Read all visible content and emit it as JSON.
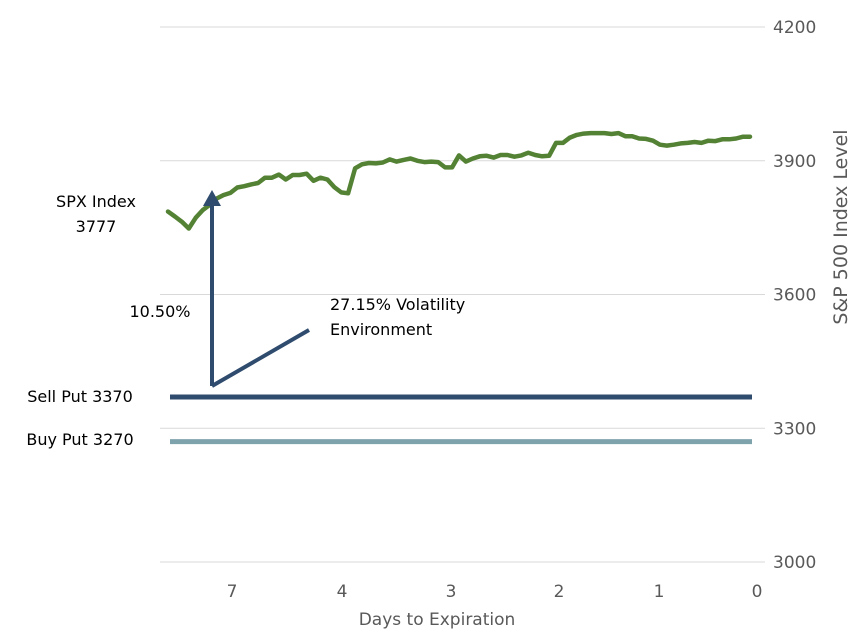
{
  "chart_data": {
    "type": "line",
    "xlabel": "Days to Expiration",
    "ylabel": "S&P 500 Index Level",
    "ylim": [
      3000,
      4200
    ],
    "y_ticks": [
      "3000",
      "3300",
      "3600",
      "3900",
      "4200"
    ],
    "x_tick_labels": [
      "7",
      "4",
      "3",
      "2",
      "1",
      "0"
    ],
    "grid": true,
    "colors": {
      "spx": "#548235",
      "sell_put": "#2f4b6e",
      "buy_put": "#7fa3ad",
      "arrow": "#2f4b6e"
    },
    "series": [
      {
        "name": "SPX Index",
        "values": [
          3786,
          3775,
          3763,
          3748,
          3772,
          3789,
          3801,
          3815,
          3823,
          3828,
          3840,
          3843,
          3847,
          3850,
          3862,
          3862,
          3869,
          3858,
          3868,
          3868,
          3871,
          3855,
          3862,
          3858,
          3841,
          3829,
          3827,
          3883,
          3892,
          3895,
          3894,
          3896,
          3903,
          3898,
          3902,
          3905,
          3900,
          3897,
          3898,
          3897,
          3885,
          3885,
          3912,
          3898,
          3905,
          3910,
          3911,
          3907,
          3913,
          3913,
          3909,
          3912,
          3918,
          3913,
          3910,
          3911,
          3940,
          3940,
          3952,
          3958,
          3961,
          3962,
          3962,
          3962,
          3960,
          3962,
          3955,
          3955,
          3950,
          3949,
          3945,
          3936,
          3934,
          3936,
          3939,
          3940,
          3942,
          3940,
          3945,
          3944,
          3948,
          3948,
          3950,
          3954,
          3954
        ]
      },
      {
        "name": "Sell Put 3370",
        "value": 3370
      },
      {
        "name": "Buy Put 3270",
        "value": 3270
      }
    ],
    "annotations": {
      "spx_label_line1": "SPX Index",
      "spx_label_line2": "3777",
      "move_pct": "10.50%",
      "vol_line1": "27.15% Volatility",
      "vol_line2": "Environment",
      "sell_put_label": "Sell Put 3370",
      "buy_put_label": "Buy Put 3270"
    }
  }
}
